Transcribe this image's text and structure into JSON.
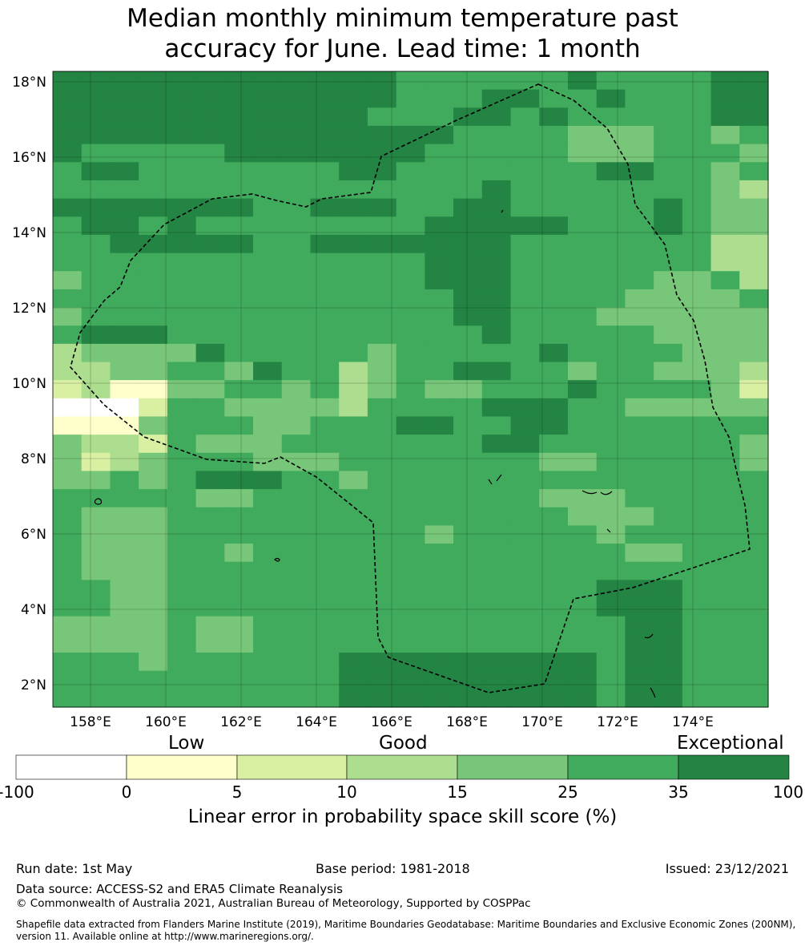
{
  "title": {
    "line1": "Median monthly minimum temperature past",
    "line2": "accuracy for June. Lead time: 1 month"
  },
  "map": {
    "lat_labels": [
      "18°N",
      "16°N",
      "14°N",
      "12°N",
      "10°N",
      "8°N",
      "6°N",
      "4°N",
      "2°N"
    ],
    "lon_labels": [
      "158°E",
      "160°E",
      "162°E",
      "164°E",
      "166°E",
      "168°E",
      "170°E",
      "172°E",
      "174°E"
    ],
    "boundary": "dashed black line (EEZ)",
    "grid_rows": [
      "6666666666665555556555566",
      "6666666666665556655655566",
      "6666666666655566565555566",
      "6666666666666655554445545",
      "6555556666666555554445554",
      "5665555555665555555665545",
      "5555555555555556555555543",
      "6666666556665566555556544",
      "5665655555555666665556544",
      "5566666556666666555555533",
      "5555555555555666555555533",
      "4555555555555666555554453",
      "5555555555555566555544445",
      "4555555555555566555444444",
      "5666555555555556555554444",
      "3444465555545555565555444",
      "3344554655345566554554443",
      "2311445545345445556555542",
      "0002554444355556665544444",
      "1114555445556655665555555",
      "4332544455555556655555554",
      "4234555444555555544555554",
      "4454566655455555555555555",
      "5555544555555555544455555",
      "5444555555555555554445555",
      "5444555555555455555455555",
      "5444554555555555555544555",
      "5444555555555555555555555",
      "5544555555555555555666555",
      "5544555555555555555666555",
      "4444544555555555555566555",
      "4444544555555555555566555",
      "5554555555666666666566555",
      "5555555555666666666566555",
      "5555555555666666666566555"
    ]
  },
  "colorbar": {
    "categories": [
      "Low",
      "Good",
      "Exceptional"
    ],
    "ticks": [
      "-100",
      "0",
      "5",
      "10",
      "15",
      "25",
      "35",
      "100"
    ],
    "colors": [
      "#ffffff",
      "#ffffcc",
      "#d9f0a3",
      "#addd8e",
      "#78c679",
      "#41ab5d",
      "#238443"
    ],
    "title": "Linear error in probability space skill score (%)"
  },
  "footer": {
    "run_date": "Run date: 1st May",
    "base_period": "Base period: 1981-2018",
    "issued": "Issued: 23/12/2021",
    "data_source": "Data source: ACCESS-S2 and ERA5 Climate Reanalysis",
    "copyright": "© Commonwealth of Australia 2021, Australian Bureau of Meteorology, Supported by COSPPac",
    "shapefile_line1": "Shapefile data extracted from Flanders Marine Institute (2019), Maritime Boundaries Geodatabase: Maritime Boundaries and Exclusive Economic Zones (200NM),",
    "shapefile_line2": "version 11. Available online at http://www.marineregions.org/."
  }
}
